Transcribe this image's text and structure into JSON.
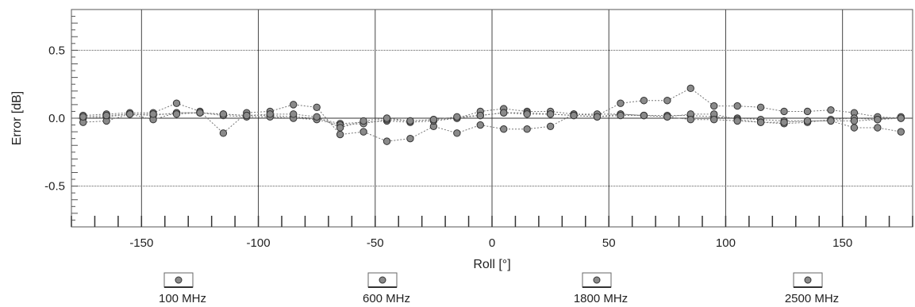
{
  "chart_data": {
    "type": "scatter",
    "title": "",
    "xlabel": "Roll [°]",
    "ylabel": "Error [dB]",
    "xlim": [
      -180,
      180
    ],
    "ylim": [
      -0.8,
      0.8
    ],
    "xticks": [
      -150,
      -100,
      -50,
      0,
      50,
      100,
      150
    ],
    "xtick_labels": [
      "-150",
      "-100",
      "-50",
      "0",
      "50",
      "100",
      "150"
    ],
    "yticks": [
      0.5,
      0,
      -0.5
    ],
    "ytick_labels": [
      "0.5",
      "0.0",
      "-0.5"
    ],
    "grid": true,
    "legend_position": "bottom",
    "colors": {
      "marker": "#8a8a8a",
      "marker_edge": "#333333",
      "line": "#777777",
      "axis": "#555555"
    },
    "x": [
      -175,
      -165,
      -155,
      -145,
      -135,
      -125,
      -115,
      -105,
      -95,
      -85,
      -75,
      -65,
      -55,
      -45,
      -35,
      -25,
      -15,
      -5,
      5,
      15,
      25,
      35,
      45,
      55,
      65,
      75,
      85,
      95,
      105,
      115,
      125,
      135,
      145,
      155,
      165,
      175
    ],
    "series": [
      {
        "name": "100 MHz",
        "values": [
          0.02,
          0.03,
          0.04,
          0.04,
          0.11,
          0.05,
          -0.11,
          0.04,
          0.05,
          0.1,
          0.08,
          -0.12,
          -0.1,
          -0.17,
          -0.15,
          -0.06,
          -0.11,
          -0.05,
          -0.08,
          -0.08,
          -0.06,
          0.03,
          0.02,
          0.11,
          0.13,
          0.13,
          0.22,
          0.09,
          0.09,
          0.08,
          0.05,
          0.05,
          0.06,
          0.04,
          0.01,
          0.0
        ]
      },
      {
        "name": "600 MHz",
        "values": [
          0.0,
          0.01,
          0.03,
          0.02,
          0.04,
          0.04,
          0.03,
          0.02,
          0.02,
          0.01,
          0.0,
          -0.04,
          -0.03,
          -0.02,
          -0.03,
          -0.02,
          0.0,
          0.05,
          0.07,
          0.05,
          0.05,
          0.03,
          0.03,
          0.03,
          0.02,
          0.02,
          0.02,
          0.01,
          0.0,
          -0.01,
          -0.02,
          -0.02,
          -0.02,
          -0.07,
          -0.07,
          -0.1
        ]
      },
      {
        "name": "1800 MHz",
        "values": [
          -0.03,
          -0.02,
          0.03,
          -0.01,
          0.04,
          0.04,
          0.02,
          0.01,
          0.01,
          0.0,
          -0.01,
          -0.05,
          -0.04,
          -0.01,
          -0.02,
          -0.01,
          0.0,
          0.02,
          0.04,
          0.04,
          0.03,
          0.02,
          0.01,
          0.03,
          0.02,
          0.01,
          0.03,
          0.03,
          -0.01,
          -0.03,
          -0.04,
          -0.03,
          -0.01,
          0.0,
          -0.01,
          0.01
        ]
      },
      {
        "name": "2500 MHz",
        "values": [
          0.01,
          0.02,
          0.03,
          0.03,
          0.03,
          0.04,
          0.03,
          0.02,
          0.03,
          0.03,
          0.01,
          -0.07,
          -0.02,
          0.0,
          -0.02,
          -0.01,
          0.01,
          0.02,
          0.04,
          0.03,
          0.03,
          0.02,
          0.01,
          0.02,
          0.02,
          0.01,
          -0.01,
          -0.01,
          -0.02,
          -0.03,
          -0.03,
          -0.02,
          -0.02,
          -0.02,
          -0.01,
          0.0
        ]
      }
    ]
  }
}
